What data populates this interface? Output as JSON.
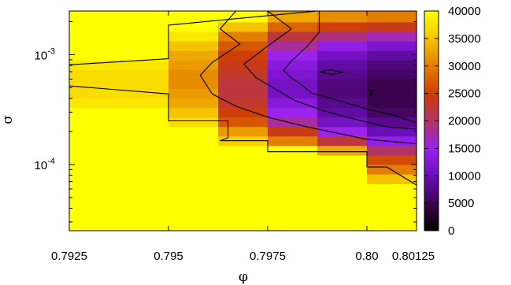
{
  "chart_data": {
    "type": "heatmap",
    "title": "",
    "xlabel": "φ",
    "ylabel": "σ",
    "xlim": [
      0.7925,
      0.80125
    ],
    "x_ticks": [
      {
        "value": 0.7925,
        "label": "0.7925"
      },
      {
        "value": 0.795,
        "label": "0.795"
      },
      {
        "value": 0.7975,
        "label": "0.7975"
      },
      {
        "value": 0.8,
        "label": "0.80"
      },
      {
        "value": 0.80125,
        "label": "0.80125"
      }
    ],
    "y_scale": "log",
    "ylim": [
      2.5e-05,
      0.0025
    ],
    "y_ticks": [
      {
        "value": 0.0001,
        "label": "10-4",
        "base": "10",
        "exp": "-4"
      },
      {
        "value": 0.001,
        "label": "10-3",
        "base": "10",
        "exp": "-3"
      }
    ],
    "colorbar": {
      "min": 0,
      "max": 40000,
      "ticks": [
        "0",
        "5000",
        "10000",
        "15000",
        "20000",
        "25000",
        "30000",
        "35000",
        "40000"
      ]
    },
    "grid": false,
    "x_edges": [
      0.7925,
      0.795,
      0.79625,
      0.7975,
      0.79875,
      0.8,
      0.80125
    ],
    "y_edges": [
      2.5e-05,
      6.7e-05,
      8.2e-05,
      0.0001,
      0.000122,
      0.000149,
      0.000182,
      0.000222,
      0.000271,
      0.000331,
      0.000404,
      0.000493,
      0.000602,
      0.000735,
      0.000897,
      0.001095,
      0.001336,
      0.001631,
      0.00199,
      0.0025
    ],
    "z": [
      [
        40000,
        40000,
        40000,
        40000,
        40000,
        40000
      ],
      [
        40000,
        40000,
        40000,
        40000,
        40000,
        35000
      ],
      [
        40000,
        40000,
        40000,
        40000,
        40000,
        30000
      ],
      [
        40000,
        40000,
        40000,
        40000,
        40000,
        26000
      ],
      [
        40000,
        40000,
        40000,
        40000,
        33000,
        20000
      ],
      [
        40000,
        40000,
        36000,
        30000,
        22000,
        14000
      ],
      [
        40000,
        40000,
        32000,
        24000,
        15000,
        10000
      ],
      [
        40000,
        37000,
        27000,
        18000,
        11000,
        8000
      ],
      [
        40000,
        35000,
        25000,
        15000,
        9000,
        6000
      ],
      [
        38000,
        33000,
        23000,
        13000,
        8000,
        5000
      ],
      [
        37000,
        32000,
        22000,
        11000,
        7000,
        5000
      ],
      [
        37000,
        31000,
        22000,
        11000,
        7000,
        5000
      ],
      [
        37000,
        31000,
        23000,
        12000,
        8000,
        6000
      ],
      [
        38000,
        32000,
        24000,
        13000,
        9000,
        7000
      ],
      [
        40000,
        33000,
        25000,
        15000,
        11000,
        9000
      ],
      [
        40000,
        35000,
        27000,
        18000,
        14000,
        12000
      ],
      [
        40000,
        38000,
        30000,
        22000,
        19000,
        17000
      ],
      [
        40000,
        40000,
        35000,
        28000,
        25000,
        24000
      ],
      [
        40000,
        40000,
        40000,
        33000,
        31000,
        30000
      ]
    ],
    "contours": [
      [
        [
          0.7925,
          0.00081
        ],
        [
          0.795,
          0.00092
        ],
        [
          0.795,
          0.00186
        ],
        [
          0.79875,
          0.0025
        ]
      ],
      [
        [
          0.7925,
          0.00052
        ],
        [
          0.795,
          0.00044
        ],
        [
          0.795,
          0.00025
        ],
        [
          0.7965,
          0.00025
        ],
        [
          0.7965,
          0.000175
        ],
        [
          0.7963,
          0.000165
        ],
        [
          0.7975,
          0.000165
        ],
        [
          0.7975,
          0.000131
        ],
        [
          0.8,
          0.000131
        ],
        [
          0.8,
          9.5e-05
        ],
        [
          0.8005,
          9.5e-05
        ],
        [
          0.80125,
          6.5e-05
        ]
      ],
      [
        [
          0.7967,
          0.0025
        ],
        [
          0.7963,
          0.00172
        ],
        [
          0.7968,
          0.00125
        ],
        [
          0.7961,
          0.00085
        ],
        [
          0.7958,
          0.00065
        ],
        [
          0.7961,
          0.00044
        ],
        [
          0.7967,
          0.00034
        ],
        [
          0.7975,
          0.00027
        ],
        [
          0.7985,
          0.00022
        ],
        [
          0.8,
          0.00017
        ],
        [
          0.80125,
          0.000155
        ]
      ],
      [
        [
          0.7975,
          0.0025
        ],
        [
          0.7981,
          0.00172
        ],
        [
          0.7975,
          0.0012
        ],
        [
          0.7969,
          0.00082
        ],
        [
          0.7972,
          0.00062
        ],
        [
          0.7976,
          0.00051
        ],
        [
          0.7982,
          0.00038
        ],
        [
          0.7989,
          0.00031
        ],
        [
          0.7995,
          0.00027
        ],
        [
          0.8005,
          0.00022
        ],
        [
          0.80125,
          0.00021
        ]
      ],
      [
        [
          0.7988,
          0.0025
        ],
        [
          0.7988,
          0.0016
        ],
        [
          0.7985,
          0.0012
        ],
        [
          0.7981,
          0.00088
        ],
        [
          0.7979,
          0.00072
        ],
        [
          0.7981,
          0.00061
        ],
        [
          0.7983,
          0.00055
        ],
        [
          0.7986,
          0.00045
        ],
        [
          0.7992,
          0.00039
        ],
        [
          0.8,
          0.00032
        ],
        [
          0.8007,
          0.00028
        ],
        [
          0.80125,
          0.00024
        ]
      ],
      [
        [
          0.7988,
          0.0007
        ],
        [
          0.7991,
          0.00066
        ],
        [
          0.7994,
          0.00069
        ],
        [
          0.7991,
          0.00073
        ],
        [
          0.7988,
          0.0007
        ]
      ],
      [
        [
          0.80005,
          0.00048
        ],
        [
          0.8001,
          0.00042
        ],
        [
          0.80015,
          0.00047
        ],
        [
          0.80005,
          0.00048
        ]
      ]
    ]
  }
}
